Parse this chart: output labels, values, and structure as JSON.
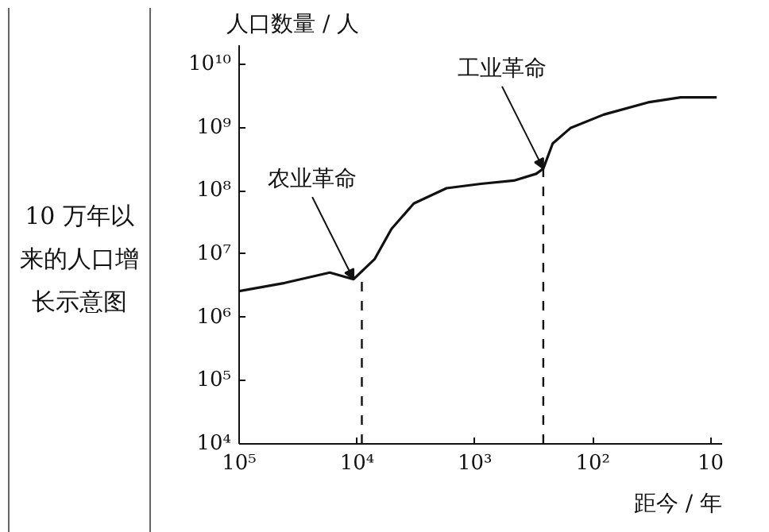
{
  "chart_data": {
    "type": "line",
    "title": "10 万年以来的人口增长示意图",
    "xlabel": "距今 / 年",
    "ylabel": "人口数量 / 人",
    "log": "xy",
    "grid": false,
    "marker": "none",
    "line_style": "solid",
    "x": [
      100000,
      41000,
      17000,
      10700,
      7100,
      5100,
      3300,
      1740,
      890,
      468,
      302,
      263,
      219,
      155,
      81,
      34,
      18,
      8.9
    ],
    "series": [
      {
        "color": "#111111",
        "values": [
          2600000,
          3500000,
          5100000,
          4000000,
          8300000,
          25000000,
          63000000,
          110000000,
          129000000,
          145000000,
          186000000,
          224000000,
          560000000,
          980000000,
          1600000000,
          2500000000,
          3000000000,
          3000000000
        ]
      }
    ],
    "xlim": [
      100000,
      8
    ],
    "ylim": [
      10000,
      20000000000
    ],
    "xticks": [
      {
        "value": 100000,
        "label": "10⁵"
      },
      {
        "value": 10000,
        "label": "10⁴"
      },
      {
        "value": 1000,
        "label": "10³"
      },
      {
        "value": 100,
        "label": "10²"
      },
      10
    ],
    "yticks": [
      {
        "value": 10000,
        "label": "10⁴"
      },
      {
        "value": 100000,
        "label": "10⁵"
      },
      {
        "value": 1000000,
        "label": "10⁶"
      },
      {
        "value": 10000000,
        "label": "10⁷"
      },
      {
        "value": 100000000,
        "label": "10⁸"
      },
      {
        "value": 1000000000,
        "label": "10⁹"
      },
      {
        "value": 10000000000,
        "label": "10¹⁰"
      }
    ],
    "ref_lines": [
      {
        "axis": "x",
        "value": 9100,
        "line_style": "dashed",
        "color": "#111111"
      },
      {
        "axis": "x",
        "value": 263,
        "line_style": "dashed",
        "color": "#111111"
      }
    ],
    "annotations": [
      {
        "text": "农业革命",
        "x": 10700,
        "y": 4000000
      },
      {
        "text": "工业革命",
        "x": 263,
        "y": 224000000
      }
    ]
  }
}
